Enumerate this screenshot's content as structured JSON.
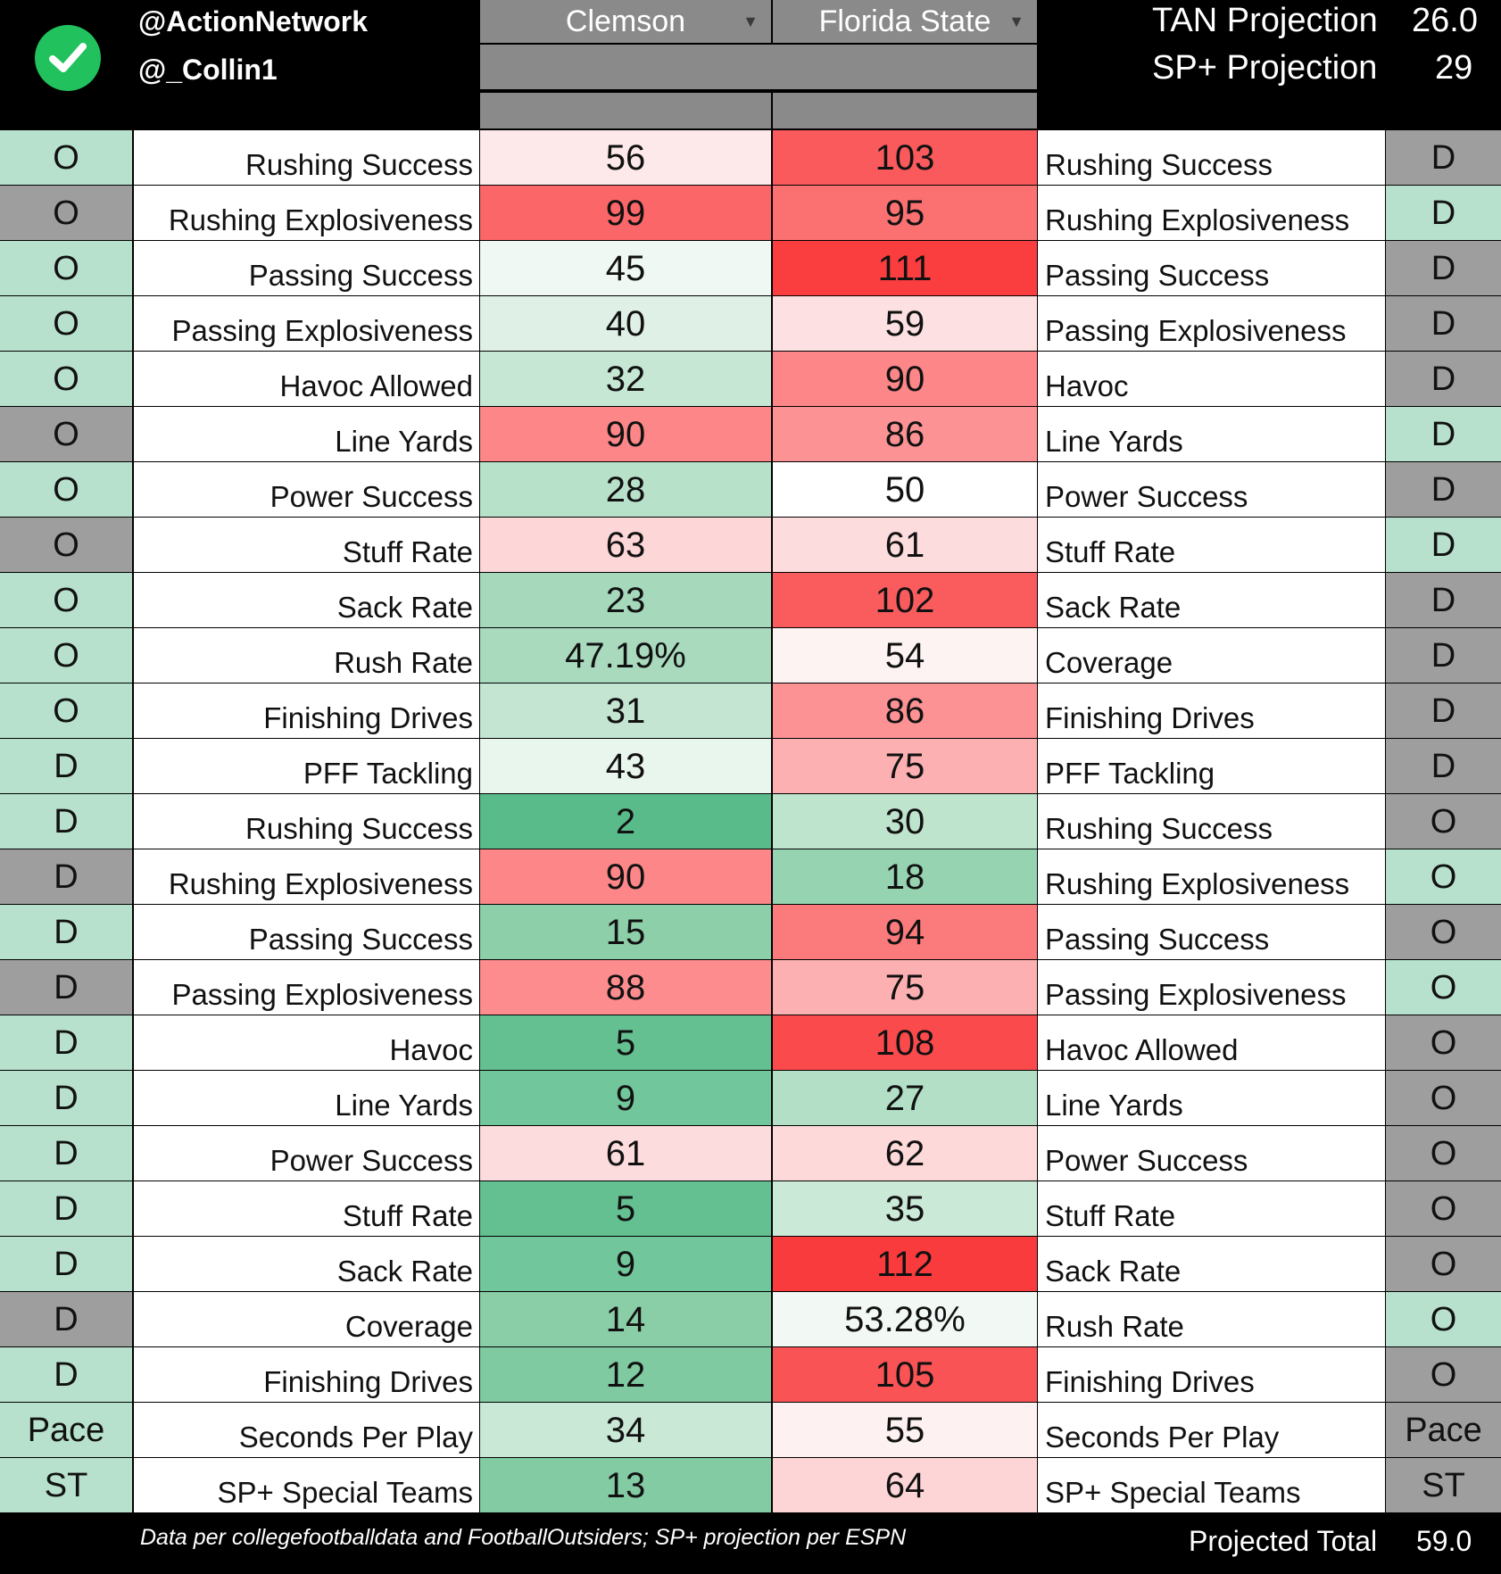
{
  "header": {
    "handle_1": "@ActionNetwork",
    "handle_2": "@_Collin1",
    "team_a": "Clemson",
    "team_b": "Florida State",
    "tan_label": "TAN Projection",
    "tan_value": "26.0",
    "sp_label": "SP+ Projection",
    "sp_value": "29"
  },
  "rows": [
    {
      "ls": "O",
      "ll": "Rushing Success",
      "a": "56",
      "b": "103",
      "rl": "Rushing Success",
      "rs": "D",
      "lsc": "#b7e1cd",
      "rsc": "#9e9e9e",
      "ac": "#fde9ea",
      "bc": "#fa5a5c"
    },
    {
      "ls": "O",
      "ll": "Rushing Explosiveness",
      "a": "99",
      "b": "95",
      "rl": "Rushing Explosiveness",
      "rs": "D",
      "lsc": "#9e9e9e",
      "rsc": "#b7e1cd",
      "ac": "#fb6668",
      "bc": "#fb7172"
    },
    {
      "ls": "O",
      "ll": "Passing Success",
      "a": "45",
      "b": "111",
      "rl": "Passing Success",
      "rs": "D",
      "lsc": "#b7e1cd",
      "rsc": "#9e9e9e",
      "ac": "#eff8f2",
      "bc": "#fa3d3f"
    },
    {
      "ls": "O",
      "ll": "Passing Explosiveness",
      "a": "40",
      "b": "59",
      "rl": "Passing Explosiveness",
      "rs": "D",
      "lsc": "#b7e1cd",
      "rsc": "#9e9e9e",
      "ac": "#dff1e6",
      "bc": "#fde1e2"
    },
    {
      "ls": "O",
      "ll": "Havoc Allowed",
      "a": "32",
      "b": "90",
      "rl": "Havoc",
      "rs": "D",
      "lsc": "#b7e1cd",
      "rsc": "#9e9e9e",
      "ac": "#c6e7d3",
      "bc": "#fc8688"
    },
    {
      "ls": "O",
      "ll": "Line Yards",
      "a": "90",
      "b": "86",
      "rl": "Line Yards",
      "rs": "D",
      "lsc": "#9e9e9e",
      "rsc": "#b7e1cd",
      "ac": "#fc8688",
      "bc": "#fc9294"
    },
    {
      "ls": "O",
      "ll": "Power Success",
      "a": "28",
      "b": "50",
      "rl": "Power Success",
      "rs": "D",
      "lsc": "#b7e1cd",
      "rsc": "#9e9e9e",
      "ac": "#b8e1ca",
      "bc": "#ffffff"
    },
    {
      "ls": "O",
      "ll": "Stuff Rate",
      "a": "63",
      "b": "61",
      "rl": "Stuff Rate",
      "rs": "D",
      "lsc": "#9e9e9e",
      "rsc": "#b7e1cd",
      "ac": "#fdd6d7",
      "bc": "#fddcdd"
    },
    {
      "ls": "O",
      "ll": "Sack Rate",
      "a": "23",
      "b": "102",
      "rl": "Sack Rate",
      "rs": "D",
      "lsc": "#b7e1cd",
      "rsc": "#9e9e9e",
      "ac": "#a6d9bc",
      "bc": "#fa5c5e"
    },
    {
      "ls": "O",
      "ll": "Rush Rate",
      "a": "47.19%",
      "b": "54",
      "rl": "Coverage",
      "rs": "D",
      "lsc": "#b7e1cd",
      "rsc": "#9e9e9e",
      "ac": "#a9dabe",
      "bc": "#fef3f3"
    },
    {
      "ls": "O",
      "ll": "Finishing Drives",
      "a": "31",
      "b": "86",
      "rl": "Finishing Drives",
      "rs": "D",
      "lsc": "#b7e1cd",
      "rsc": "#9e9e9e",
      "ac": "#c3e5d1",
      "bc": "#fc9294"
    },
    {
      "ls": "D",
      "ll": "PFF Tackling",
      "a": "43",
      "b": "75",
      "rl": "PFF Tackling",
      "rs": "D",
      "lsc": "#b7e1cd",
      "rsc": "#9e9e9e",
      "ac": "#e9f6ee",
      "bc": "#fdb0b1"
    },
    {
      "ls": "D",
      "ll": "Rushing Success",
      "a": "2",
      "b": "30",
      "rl": "Rushing Success",
      "rs": "O",
      "lsc": "#b7e1cd",
      "rsc": "#9e9e9e",
      "ac": "#5abb8a",
      "bc": "#bfe4ce"
    },
    {
      "ls": "D",
      "ll": "Rushing Explosiveness",
      "a": "90",
      "b": "18",
      "rl": "Rushing Explosiveness",
      "rs": "O",
      "lsc": "#9e9e9e",
      "rsc": "#b7e1cd",
      "ac": "#fc8688",
      "bc": "#96d3b1"
    },
    {
      "ls": "D",
      "ll": "Passing Success",
      "a": "15",
      "b": "94",
      "rl": "Passing Success",
      "rs": "O",
      "lsc": "#b7e1cd",
      "rsc": "#9e9e9e",
      "ac": "#8ccfa9",
      "bc": "#fb7a7c"
    },
    {
      "ls": "D",
      "ll": "Passing Explosiveness",
      "a": "88",
      "b": "75",
      "rl": "Passing Explosiveness",
      "rs": "O",
      "lsc": "#9e9e9e",
      "rsc": "#b7e1cd",
      "ac": "#fc8c8e",
      "bc": "#fdb0b1"
    },
    {
      "ls": "D",
      "ll": "Havoc",
      "a": "5",
      "b": "108",
      "rl": "Havoc Allowed",
      "rs": "O",
      "lsc": "#b7e1cd",
      "rsc": "#9e9e9e",
      "ac": "#64bf91",
      "bc": "#fa4a4c"
    },
    {
      "ls": "D",
      "ll": "Line Yards",
      "a": "9",
      "b": "27",
      "rl": "Line Yards",
      "rs": "O",
      "lsc": "#b7e1cd",
      "rsc": "#9e9e9e",
      "ac": "#72c69b",
      "bc": "#b2dfc6"
    },
    {
      "ls": "D",
      "ll": "Power Success",
      "a": "61",
      "b": "62",
      "rl": "Power Success",
      "rs": "O",
      "lsc": "#b7e1cd",
      "rsc": "#9e9e9e",
      "ac": "#fddcdd",
      "bc": "#fdd9da"
    },
    {
      "ls": "D",
      "ll": "Stuff Rate",
      "a": "5",
      "b": "35",
      "rl": "Stuff Rate",
      "rs": "O",
      "lsc": "#b7e1cd",
      "rsc": "#9e9e9e",
      "ac": "#64bf91",
      "bc": "#cbe9d7"
    },
    {
      "ls": "D",
      "ll": "Sack Rate",
      "a": "9",
      "b": "112",
      "rl": "Sack Rate",
      "rs": "O",
      "lsc": "#b7e1cd",
      "rsc": "#9e9e9e",
      "ac": "#72c69b",
      "bc": "#fa3b3d"
    },
    {
      "ls": "D",
      "ll": "Coverage",
      "a": "14",
      "b": "53.28%",
      "rl": "Rush Rate",
      "rs": "O",
      "lsc": "#9e9e9e",
      "rsc": "#b7e1cd",
      "ac": "#89cea7",
      "bc": "#f2f9f5"
    },
    {
      "ls": "D",
      "ll": "Finishing Drives",
      "a": "12",
      "b": "105",
      "rl": "Finishing Drives",
      "rs": "O",
      "lsc": "#b7e1cd",
      "rsc": "#9e9e9e",
      "ac": "#7fcaa1",
      "bc": "#fa5355"
    },
    {
      "ls": "Pace",
      "ll": "Seconds Per Play",
      "a": "34",
      "b": "55",
      "rl": "Seconds Per Play",
      "rs": "Pace",
      "lsc": "#b7e1cd",
      "rsc": "#9e9e9e",
      "ac": "#c9e8d6",
      "bc": "#fef1f1"
    },
    {
      "ls": "ST",
      "ll": "SP+ Special Teams",
      "a": "13",
      "b": "64",
      "rl": "SP+ Special Teams",
      "rs": "ST",
      "lsc": "#b7e1cd",
      "rsc": "#9e9e9e",
      "ac": "#83cba3",
      "bc": "#fdd5d6"
    }
  ],
  "footer": {
    "source": "Data per collegefootballdata and FootballOutsiders; SP+ projection per ESPN",
    "total_label": "Projected Total",
    "total_value": "59.0"
  }
}
